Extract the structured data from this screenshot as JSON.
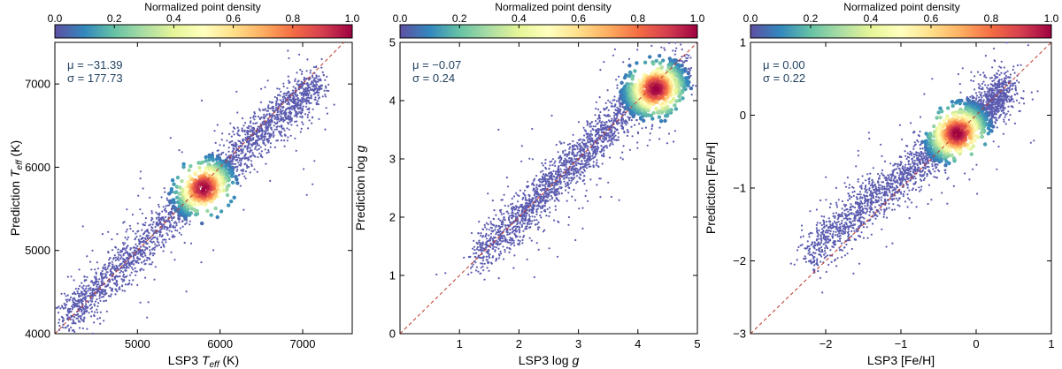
{
  "colorbar": {
    "label": "Normalized point density",
    "ticks": [
      0.0,
      0.2,
      0.4,
      0.6,
      0.8,
      1.0
    ],
    "tick_labels": [
      "0.0",
      "0.2",
      "0.4",
      "0.6",
      "0.8",
      "1.0"
    ],
    "colormap_stops": [
      "#5e4fa2",
      "#3288bd",
      "#66c2a5",
      "#abdda4",
      "#e6f598",
      "#ffffbf",
      "#fee08b",
      "#fdae61",
      "#f46d43",
      "#d53e4f",
      "#9e0142"
    ]
  },
  "colors": {
    "points": "#5b5bb0",
    "identity_line": "#c0392b",
    "stat_text": "#1f3f5f"
  },
  "chart_data": [
    {
      "type": "scatter",
      "xlabel_parts": [
        "LSP3 ",
        "T",
        "eff",
        " (K)"
      ],
      "ylabel_parts": [
        "Prediction ",
        "T",
        "eff",
        " (K)"
      ],
      "xlim": [
        4000,
        7600
      ],
      "ylim": [
        4000,
        7500
      ],
      "xticks": [
        5000,
        6000,
        7000
      ],
      "yticks": [
        4000,
        5000,
        6000,
        7000
      ],
      "mu_label": "μ = −31.39",
      "sigma_label": "σ = 177.73",
      "mu": -31.39,
      "sigma": 177.73,
      "identity_line": true,
      "density_core": {
        "x": 5800,
        "y": 5750
      },
      "density_ridge": [
        [
          4100,
          4150
        ],
        [
          4600,
          4600
        ],
        [
          5200,
          5200
        ],
        [
          5800,
          5750
        ],
        [
          6300,
          6250
        ],
        [
          6800,
          6700
        ],
        [
          7200,
          7000
        ]
      ]
    },
    {
      "type": "scatter",
      "xlabel_parts": [
        "LSP3 log ",
        "g"
      ],
      "ylabel_parts": [
        "Prediction log ",
        "g"
      ],
      "xlim": [
        0,
        5
      ],
      "ylim": [
        0,
        5
      ],
      "xticks": [
        1,
        2,
        3,
        4,
        5
      ],
      "yticks": [
        0,
        1,
        2,
        3,
        4,
        5
      ],
      "mu_label": "μ = −0.07",
      "sigma_label": "σ = 0.24",
      "mu": -0.07,
      "sigma": 0.24,
      "identity_line": true,
      "density_core": {
        "x": 4.3,
        "y": 4.2
      },
      "density_ridge": [
        [
          1.3,
          1.3
        ],
        [
          2.0,
          2.0
        ],
        [
          2.6,
          2.6
        ],
        [
          3.2,
          3.2
        ],
        [
          3.8,
          3.9
        ],
        [
          4.3,
          4.2
        ],
        [
          4.8,
          4.5
        ]
      ]
    },
    {
      "type": "scatter",
      "xlabel_parts": [
        "LSP3 [Fe/H]"
      ],
      "ylabel_parts": [
        "Prediction [Fe/H]"
      ],
      "xlim": [
        -3,
        1
      ],
      "ylim": [
        -3,
        1
      ],
      "xticks": [
        -2,
        -1,
        0,
        1
      ],
      "yticks": [
        -3,
        -2,
        -1,
        0,
        1
      ],
      "mu_label": "μ = 0.00",
      "sigma_label": "σ = 0.22",
      "mu": 0.0,
      "sigma": 0.22,
      "identity_line": true,
      "density_core": {
        "x": -0.25,
        "y": -0.25
      },
      "density_ridge": [
        [
          -2.2,
          -1.9
        ],
        [
          -1.6,
          -1.35
        ],
        [
          -1.0,
          -0.85
        ],
        [
          -0.5,
          -0.45
        ],
        [
          -0.1,
          -0.1
        ],
        [
          0.2,
          0.15
        ],
        [
          0.4,
          0.35
        ]
      ]
    }
  ]
}
